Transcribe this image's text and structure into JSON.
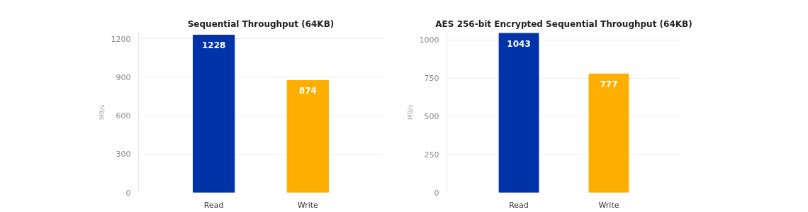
{
  "chart_data": [
    {
      "type": "bar",
      "title": "Sequential Throughput (64KB)",
      "ylabel": "MB/s",
      "categories": [
        "Read",
        "Write"
      ],
      "values": [
        1228,
        874
      ],
      "colors": [
        "#0033a8",
        "#ffaf00"
      ],
      "ylim": [
        0,
        1250
      ],
      "yticks": [
        0,
        300,
        600,
        900,
        1200
      ],
      "grid": "y",
      "data_labels": true
    },
    {
      "type": "bar",
      "title": "AES 256-bit Encrypted Sequential Throughput (64KB)",
      "ylabel": "MB/s",
      "categories": [
        "Read",
        "Write"
      ],
      "values": [
        1043,
        777
      ],
      "colors": [
        "#0033a8",
        "#ffaf00"
      ],
      "ylim": [
        0,
        1050
      ],
      "yticks": [
        0,
        250,
        500,
        750,
        1000
      ],
      "grid": "y",
      "data_labels": true
    }
  ]
}
